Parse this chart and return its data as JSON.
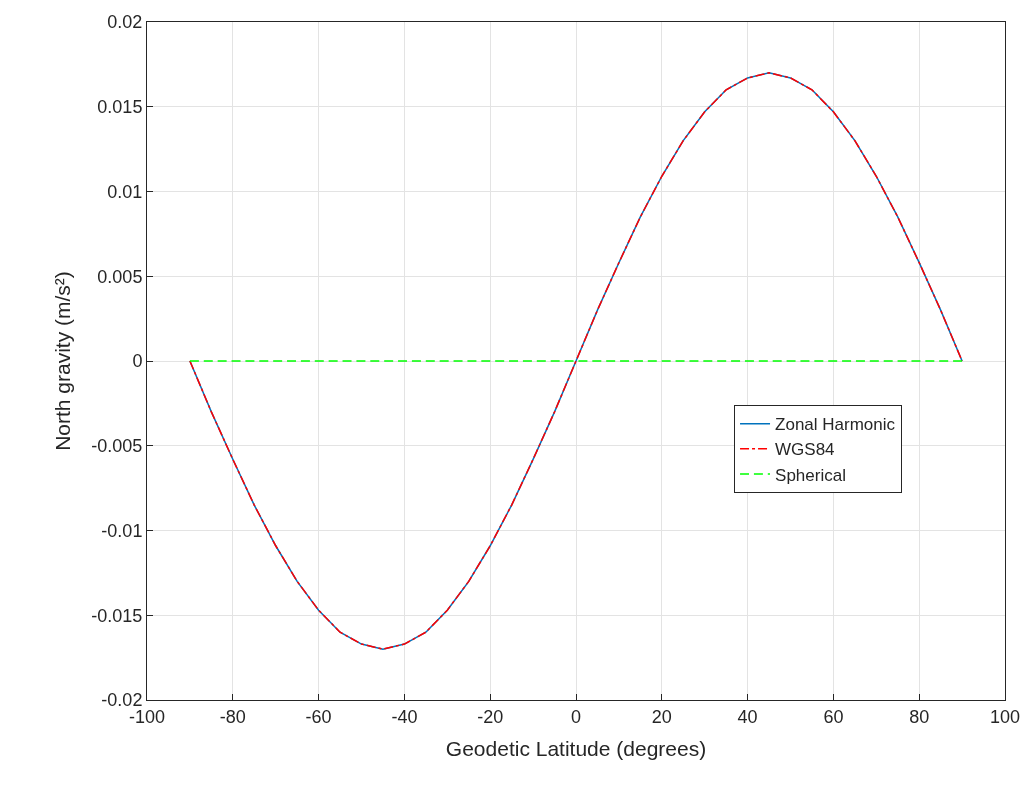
{
  "chart_data": {
    "type": "line",
    "xlabel": "Geodetic Latitude (degrees)",
    "ylabel": "North gravity (m/s²)",
    "x": [
      -90,
      -85,
      -80,
      -75,
      -70,
      -65,
      -60,
      -55,
      -50,
      -45,
      -40,
      -35,
      -30,
      -25,
      -20,
      -15,
      -10,
      -5,
      0,
      5,
      10,
      15,
      20,
      25,
      30,
      35,
      40,
      45,
      50,
      55,
      60,
      65,
      70,
      75,
      80,
      85,
      90
    ],
    "series": [
      {
        "name": "Zonal Harmonic",
        "color": "#0072bd",
        "line_style": "solid",
        "values": [
          0,
          -0.003,
          -0.0058,
          -0.0085,
          -0.0109,
          -0.013,
          -0.0147,
          -0.016,
          -0.0167,
          -0.017,
          -0.0167,
          -0.016,
          -0.0147,
          -0.013,
          -0.0109,
          -0.0085,
          -0.0058,
          -0.003,
          0,
          0.003,
          0.0058,
          0.0085,
          0.0109,
          0.013,
          0.0147,
          0.016,
          0.0167,
          0.017,
          0.0167,
          0.016,
          0.0147,
          0.013,
          0.0109,
          0.0085,
          0.0058,
          0.003,
          0
        ]
      },
      {
        "name": "WGS84",
        "color": "#ff0000",
        "line_style": "dashdot",
        "values": [
          0,
          -0.003,
          -0.0058,
          -0.0085,
          -0.0109,
          -0.013,
          -0.0147,
          -0.016,
          -0.0167,
          -0.017,
          -0.0167,
          -0.016,
          -0.0147,
          -0.013,
          -0.0109,
          -0.0085,
          -0.0058,
          -0.003,
          0,
          0.003,
          0.0058,
          0.0085,
          0.0109,
          0.013,
          0.0147,
          0.016,
          0.0167,
          0.017,
          0.0167,
          0.016,
          0.0147,
          0.013,
          0.0109,
          0.0085,
          0.0058,
          0.003,
          0
        ]
      },
      {
        "name": "Spherical",
        "color": "#00ff00",
        "line_style": "dashed",
        "values": [
          0,
          0,
          0,
          0,
          0,
          0,
          0,
          0,
          0,
          0,
          0,
          0,
          0,
          0,
          0,
          0,
          0,
          0,
          0,
          0,
          0,
          0,
          0,
          0,
          0,
          0,
          0,
          0,
          0,
          0,
          0,
          0,
          0,
          0,
          0,
          0,
          0
        ]
      }
    ],
    "xlim": [
      -100,
      100
    ],
    "xticks": [
      -100,
      -80,
      -60,
      -40,
      -20,
      0,
      20,
      40,
      60,
      80,
      100
    ],
    "ylim": [
      -0.02,
      0.02
    ],
    "yticks": [
      -0.02,
      -0.015,
      -0.01,
      -0.005,
      0,
      0.005,
      0.01,
      0.015,
      0.02
    ],
    "grid": true,
    "legend": "right",
    "marker": "none"
  }
}
